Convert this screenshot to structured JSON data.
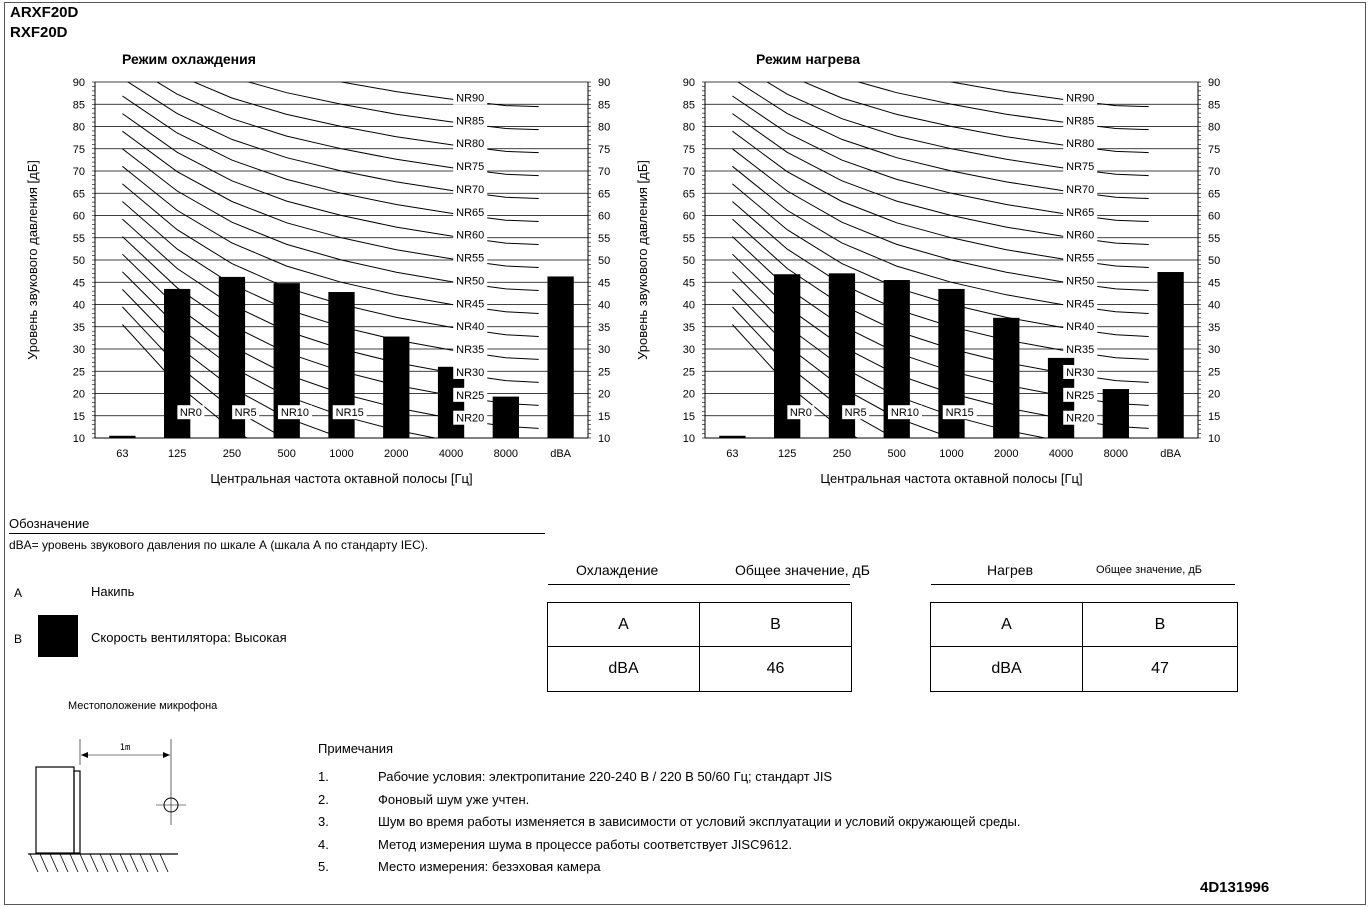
{
  "header": {
    "model_1": "ARXF20D",
    "model_2": "RXF20D"
  },
  "chart_data": [
    {
      "type": "bar",
      "title": "Режим охлаждения",
      "xlabel": "Центральная частота октавной полосы [Гц]",
      "ylabel": "Уровень звукового давления [дБ]",
      "ylim": [
        10,
        90
      ],
      "yticks": [
        10,
        15,
        20,
        25,
        30,
        35,
        40,
        45,
        50,
        55,
        60,
        65,
        70,
        75,
        80,
        85,
        90
      ],
      "categories": [
        "63",
        "125",
        "250",
        "500",
        "1000",
        "2000",
        "4000",
        "8000",
        "dBA"
      ],
      "series": [
        {
          "values": [
            10.5,
            43.5,
            46.2,
            44.8,
            42.8,
            32.8,
            26,
            19.3,
            46.3
          ]
        }
      ],
      "nr_curve_labels": [
        "NR0",
        "NR5",
        "NR10",
        "NR15",
        "NR20",
        "NR25",
        "NR30",
        "NR35",
        "NR40",
        "NR45",
        "NR50",
        "NR55",
        "NR60",
        "NR65",
        "NR70",
        "NR75",
        "NR80",
        "NR85",
        "NR90"
      ],
      "bar_color": "#000000"
    },
    {
      "type": "bar",
      "title": "Режим нагрева",
      "xlabel": "Центральная частота октавной полосы [Гц]",
      "ylabel": "Уровень звукового давления [дБ]",
      "ylim": [
        10,
        90
      ],
      "yticks": [
        10,
        15,
        20,
        25,
        30,
        35,
        40,
        45,
        50,
        55,
        60,
        65,
        70,
        75,
        80,
        85,
        90
      ],
      "categories": [
        "63",
        "125",
        "250",
        "500",
        "1000",
        "2000",
        "4000",
        "8000",
        "dBA"
      ],
      "series": [
        {
          "values": [
            10.5,
            46.8,
            47,
            45.5,
            43.5,
            37,
            28,
            21,
            47.3
          ]
        }
      ],
      "nr_curve_labels": [
        "NR0",
        "NR5",
        "NR10",
        "NR15",
        "NR20",
        "NR25",
        "NR30",
        "NR35",
        "NR40",
        "NR45",
        "NR50",
        "NR55",
        "NR60",
        "NR65",
        "NR70",
        "NR75",
        "NR80",
        "NR85",
        "NR90"
      ],
      "bar_color": "#000000"
    }
  ],
  "legend": {
    "title": "Обозначение",
    "dba_note": "dBA= уровень звукового давления по шкале А (шкала А по стандарту IEC).",
    "a_letter": "A",
    "a_label": "Накипь",
    "b_letter": "B",
    "b_label": "Скорость вентилятора: Высокая"
  },
  "cooling_table": {
    "title": "Охлаждение",
    "total_label": "Общее значение, дБ",
    "col_a": "A",
    "col_b": "B",
    "row_label": "dBA",
    "value": "46"
  },
  "heating_table": {
    "title": "Нагрев",
    "total_label": "Общее значение, дБ",
    "col_a": "A",
    "col_b": "B",
    "row_label": "dBA",
    "value": "47"
  },
  "microphone": {
    "title": "Местоположение микрофона",
    "distance": "1m"
  },
  "notes": {
    "title": "Примечания",
    "items": [
      {
        "num": "1.",
        "text": "Рабочие условия: электропитание 220-240 В / 220 В 50/60 Гц; стандарт JIS"
      },
      {
        "num": "2.",
        "text": "Фоновый шум уже учтен."
      },
      {
        "num": "3.",
        "text": "Шум во время работы изменяется в зависимости от условий эксплуатации и условий окружающей среды."
      },
      {
        "num": "4.",
        "text": "Метод измерения шума в процессе работы соответствует JISC9612."
      },
      {
        "num": "5.",
        "text": "Место измерения: безэховая камера"
      }
    ]
  },
  "doc_code": "4D131996"
}
